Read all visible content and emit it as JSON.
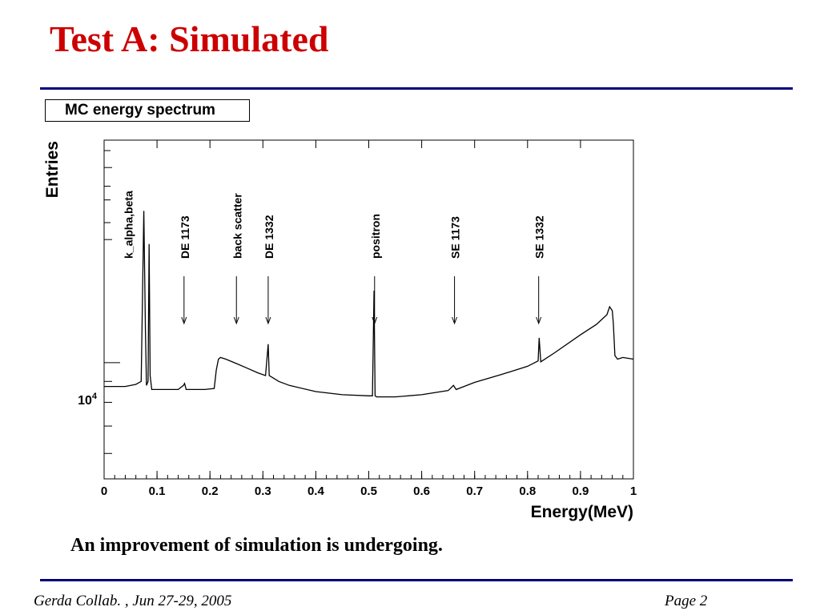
{
  "slide": {
    "title": "Test A: Simulated",
    "caption": "An improvement of simulation is undergoing.",
    "footer_left": "Gerda Collab. , Jun 27-29, 2005",
    "footer_right": "Page 2"
  },
  "colors": {
    "title": "#cc0000",
    "rule": "#00007f",
    "plot": "#000000"
  },
  "chart_data": {
    "type": "line",
    "title": "MC energy spectrum",
    "xlabel": "Energy(MeV)",
    "ylabel": "Entries",
    "xlim": [
      0,
      1
    ],
    "ylim": [
      5200,
      35000
    ],
    "yscale": "log",
    "x_ticks": [
      0,
      0.1,
      0.2,
      0.3,
      0.4,
      0.5,
      0.6,
      0.7,
      0.8,
      0.9,
      1
    ],
    "x_tick_labels": [
      "0",
      "0.1",
      "0.2",
      "0.3",
      "0.4",
      "0.5",
      "0.6",
      "0.7",
      "0.8",
      "0.9",
      "1"
    ],
    "y_major_tick": {
      "value": 10000,
      "base": "10",
      "exponent": "4"
    },
    "grid": false,
    "series": [
      {
        "x": [
          0,
          0.02,
          0.04,
          0.06,
          0.07,
          0.075,
          0.078,
          0.08,
          0.083,
          0.085,
          0.087,
          0.09,
          0.1,
          0.12,
          0.14,
          0.15,
          0.152,
          0.155,
          0.17,
          0.19,
          0.208,
          0.212,
          0.216,
          0.22,
          0.23,
          0.25,
          0.27,
          0.29,
          0.305,
          0.31,
          0.312,
          0.315,
          0.33,
          0.35,
          0.4,
          0.45,
          0.5,
          0.507,
          0.51,
          0.512,
          0.515,
          0.53,
          0.55,
          0.6,
          0.65,
          0.66,
          0.665,
          0.68,
          0.7,
          0.75,
          0.8,
          0.82,
          0.822,
          0.825,
          0.85,
          0.9,
          0.93,
          0.95,
          0.955,
          0.96,
          0.962,
          0.965,
          0.97,
          0.98,
          1.0
        ],
        "y": [
          8750,
          8750,
          8750,
          8850,
          9000,
          23500,
          12000,
          8800,
          9000,
          19500,
          9300,
          8600,
          8600,
          8600,
          8600,
          8800,
          8900,
          8600,
          8600,
          8600,
          8650,
          9600,
          10200,
          10300,
          10200,
          9950,
          9700,
          9450,
          9300,
          11100,
          9300,
          9250,
          9000,
          8800,
          8500,
          8350,
          8300,
          8300,
          15000,
          8300,
          8250,
          8250,
          8250,
          8350,
          8550,
          8800,
          8600,
          8750,
          8950,
          9350,
          9800,
          10100,
          11500,
          10050,
          10550,
          11700,
          12400,
          13100,
          13700,
          13400,
          12500,
          10400,
          10200,
          10300,
          10200
        ]
      }
    ],
    "annotations": [
      {
        "label": "k_alpha,beta",
        "x": 0.045,
        "arrow": false
      },
      {
        "label": "DE 1173",
        "x": 0.151,
        "arrow": true
      },
      {
        "label": "back scatter",
        "x": 0.25,
        "arrow": true
      },
      {
        "label": "DE 1332",
        "x": 0.31,
        "arrow": true
      },
      {
        "label": "positron",
        "x": 0.511,
        "arrow": true
      },
      {
        "label": "SE 1173",
        "x": 0.662,
        "arrow": true
      },
      {
        "label": "SE 1332",
        "x": 0.821,
        "arrow": true
      }
    ]
  }
}
